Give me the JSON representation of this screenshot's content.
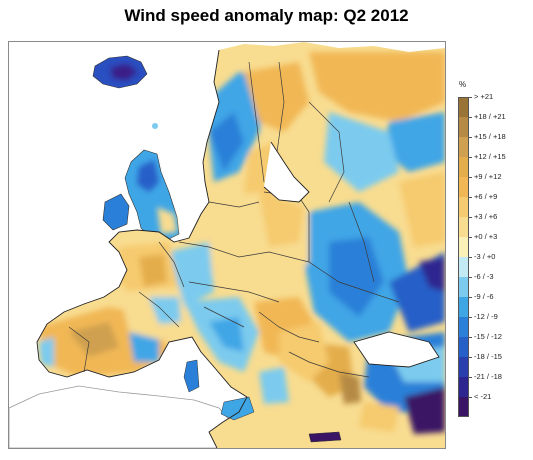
{
  "title": "Wind speed anomaly map: Q2 2012",
  "legend": {
    "unit": "%",
    "classes": [
      {
        "label": "> +21",
        "color": "#9a7436"
      },
      {
        "label": "+18 / +21",
        "color": "#b58a45"
      },
      {
        "label": "+15 / +18",
        "color": "#cfa050"
      },
      {
        "label": "+12 / +15",
        "color": "#e4ad4c"
      },
      {
        "label": "+9 / +12",
        "color": "#f1b755"
      },
      {
        "label": "+6 / +9",
        "color": "#f6ca6e"
      },
      {
        "label": "+3 / +6",
        "color": "#f8dc90"
      },
      {
        "label": "+0 / +3",
        "color": "#faf0b8"
      },
      {
        "label": "-3 / +0",
        "color": "#c3e9f4"
      },
      {
        "label": "-6 / -3",
        "color": "#7ccbee"
      },
      {
        "label": "-9 / -6",
        "color": "#3fa6e6"
      },
      {
        "label": "-12 / -9",
        "color": "#2a80d8"
      },
      {
        "label": "-15 / -12",
        "color": "#255fc8"
      },
      {
        "label": "-18 / -15",
        "color": "#2a3fae"
      },
      {
        "label": "-21 / -18",
        "color": "#2d2690"
      },
      {
        "label": "< -21",
        "color": "#3a1565"
      }
    ]
  }
}
